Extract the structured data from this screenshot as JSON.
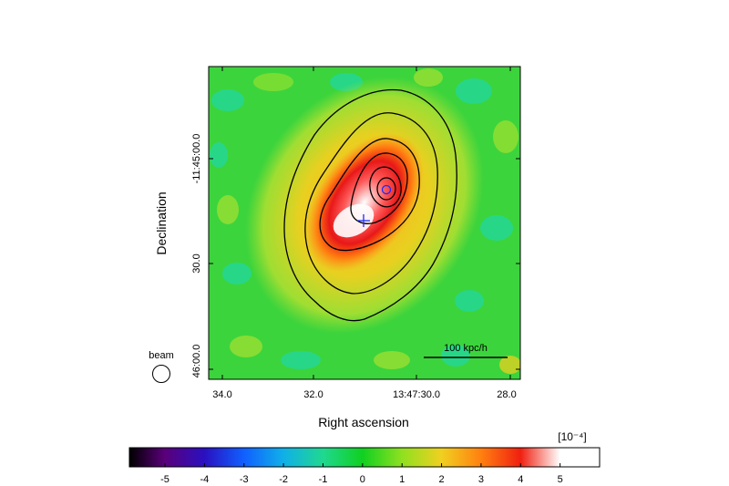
{
  "chart_data": {
    "type": "heatmap",
    "xlabel": "Right ascension",
    "ylabel": "Declination",
    "x_ticks": [
      "34.0",
      "32.0",
      "13:47:30.0",
      "28.0"
    ],
    "y_ticks": [
      "-11:45:00.0",
      "30.0",
      "46:00.0"
    ],
    "scalebar_label": "100 kpc/h",
    "beam_label": "beam",
    "colorbar": {
      "unit_label": "[10⁻⁴]",
      "ticks": [
        "-5",
        "-4",
        "-3",
        "-2",
        "-1",
        "0",
        "1",
        "2",
        "3",
        "4",
        "5"
      ],
      "range": [
        -5.9,
        6.0
      ],
      "stops": [
        {
          "v": -5.9,
          "c": "#000000"
        },
        {
          "v": -5.0,
          "c": "#5a007a"
        },
        {
          "v": -4.0,
          "c": "#2a10c0"
        },
        {
          "v": -3.0,
          "c": "#1060ff"
        },
        {
          "v": -2.0,
          "c": "#10b0e8"
        },
        {
          "v": -1.0,
          "c": "#20d890"
        },
        {
          "v": 0.0,
          "c": "#10d020"
        },
        {
          "v": 1.0,
          "c": "#90e020"
        },
        {
          "v": 2.0,
          "c": "#f0d020"
        },
        {
          "v": 3.0,
          "c": "#ff8010"
        },
        {
          "v": 4.0,
          "c": "#f02010"
        },
        {
          "v": 5.0,
          "c": "#ffffff"
        },
        {
          "v": 6.0,
          "c": "#ffffff"
        }
      ]
    },
    "markers": [
      {
        "symbol": "+",
        "color": "#1a2cff",
        "label": ""
      },
      {
        "symbol": "o",
        "color": "#1a2cff",
        "label": ""
      }
    ]
  }
}
